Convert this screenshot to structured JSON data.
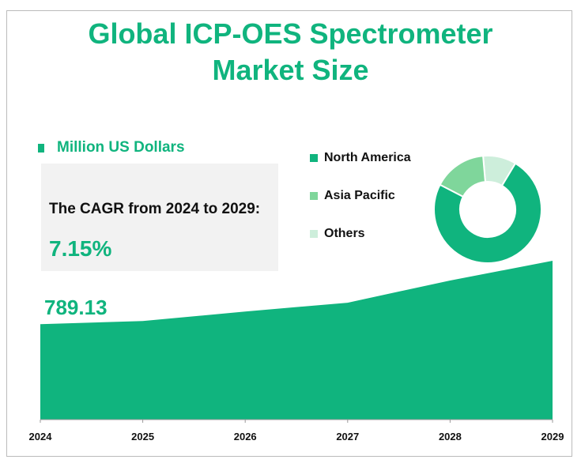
{
  "title_line1": "Global  ICP-OES Spectrometer",
  "title_line2": "Market Size",
  "unit_label": "Million US Dollars",
  "cagr_label": "The CAGR from 2024 to 2029:",
  "cagr_value": "7.15%",
  "first_value_label": "789.13",
  "chart_data": [
    {
      "type": "area",
      "x": [
        "2024",
        "2025",
        "2026",
        "2027",
        "2028",
        "2029"
      ],
      "values": [
        789.13,
        805,
        854,
        899,
        1013,
        1114
      ],
      "ylim": [
        300,
        1150
      ],
      "color": "#10b47e",
      "ylabel": "Million US Dollars"
    },
    {
      "type": "pie",
      "labels": [
        "North America",
        "Asia Pacific",
        "Others"
      ],
      "values": [
        74,
        16,
        10
      ],
      "colors": [
        "#10b47e",
        "#7fd69b",
        "#cdeedb"
      ],
      "donut": true,
      "legend": "left"
    }
  ]
}
